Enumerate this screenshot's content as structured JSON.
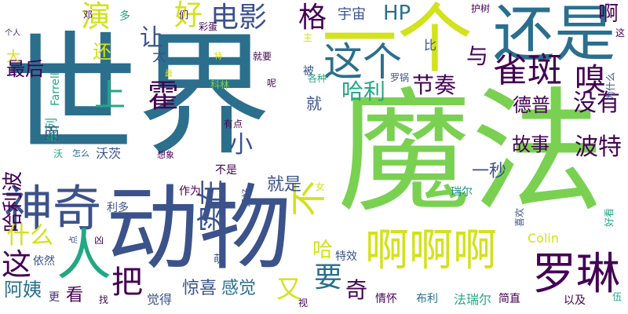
{
  "wordcloud": {
    "words": [
      "世界",
      "魔法",
      "动物",
      "一个",
      "还是",
      "神奇",
      "这个",
      "啊啊啊",
      "罗琳",
      "雀斑",
      "电影",
      "人",
      "格",
      "宇宙",
      "HP",
      "好",
      "演",
      "最后",
      "让",
      "上",
      "霍",
      "节奏",
      "哈利",
      "嗅",
      "啊",
      "与",
      "德普",
      "没有",
      "故事",
      "波特",
      "小",
      "实在",
      "不",
      "一秒",
      "就是",
      "哈利波",
      "系列",
      "什么",
      "把",
      "这",
      "阿姨",
      "要",
      "奇",
      "惊喜",
      "感觉",
      "又",
      "哈",
      "特效",
      "Colin",
      "Farrell",
      "邓",
      "多",
      "们",
      "彩蛋",
      "护树",
      "主",
      "被",
      "各种",
      "罗锅",
      "比",
      "还",
      "太",
      "大",
      "个人",
      "特",
      "就要",
      "科林",
      "呢",
      "最",
      "有点",
      "怎么",
      "沃茨",
      "想象",
      "不是",
      "最好",
      "作为",
      "利多",
      "点",
      "依然",
      "萌",
      "觉得",
      "情怀",
      "布利",
      "法瑞尔",
      "简直",
      "以及",
      "瑞尔",
      "喜欢",
      "好看",
      "为什么",
      "看",
      "更",
      "找",
      "视",
      "就",
      "女",
      "沃",
      "而",
      "凶",
      "伍",
      "这"
    ]
  }
}
